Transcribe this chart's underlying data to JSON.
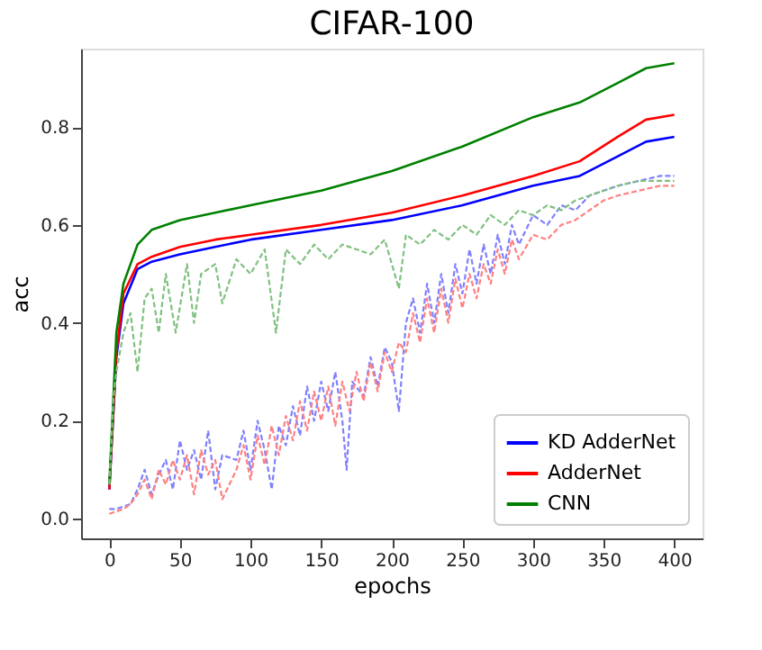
{
  "chart_data": {
    "type": "line",
    "title": "CIFAR-100",
    "xlabel": "epochs",
    "ylabel": "acc",
    "xlim": [
      -20,
      420
    ],
    "xticks": [
      0,
      50,
      100,
      150,
      200,
      250,
      300,
      350,
      400
    ],
    "ylim": [
      -0.04,
      0.96
    ],
    "yticks": [
      {
        "value": 0,
        "label": "0.0"
      },
      0.2,
      0.4,
      0.6,
      0.8
    ],
    "grid": false,
    "legend": "bottom right",
    "series": [
      {
        "name": "KD AdderNet",
        "color": "#0000ff",
        "line_style": "solid",
        "x": [
          0,
          5,
          10,
          20,
          30,
          50,
          75,
          100,
          150,
          200,
          250,
          300,
          333,
          360,
          380,
          400
        ],
        "values": [
          0.06,
          0.33,
          0.44,
          0.51,
          0.525,
          0.54,
          0.555,
          0.57,
          0.59,
          0.61,
          0.64,
          0.68,
          0.7,
          0.74,
          0.77,
          0.78
        ]
      },
      {
        "name": "AdderNet",
        "color": "#ff0000",
        "line_style": "solid",
        "x": [
          0,
          5,
          10,
          20,
          30,
          50,
          75,
          100,
          150,
          200,
          250,
          300,
          333,
          360,
          380,
          400
        ],
        "values": [
          0.06,
          0.34,
          0.46,
          0.52,
          0.535,
          0.555,
          0.57,
          0.58,
          0.6,
          0.625,
          0.66,
          0.7,
          0.73,
          0.78,
          0.815,
          0.825
        ]
      },
      {
        "name": "CNN",
        "color": "#008000",
        "line_style": "solid",
        "x": [
          0,
          5,
          10,
          20,
          30,
          50,
          75,
          100,
          150,
          200,
          250,
          300,
          333,
          360,
          380,
          400
        ],
        "values": [
          0.07,
          0.38,
          0.48,
          0.56,
          0.59,
          0.61,
          0.625,
          0.64,
          0.67,
          0.71,
          0.76,
          0.82,
          0.85,
          0.89,
          0.92,
          0.93
        ]
      },
      {
        "color": "#8080ff",
        "line_style": "dashed",
        "x": [
          0,
          5,
          10,
          15,
          20,
          25,
          30,
          35,
          40,
          45,
          50,
          55,
          60,
          65,
          70,
          75,
          80,
          90,
          95,
          100,
          105,
          110,
          115,
          120,
          125,
          130,
          135,
          140,
          145,
          150,
          155,
          160,
          165,
          168,
          172,
          180,
          185,
          190,
          195,
          200,
          205,
          210,
          215,
          220,
          225,
          230,
          235,
          240,
          245,
          250,
          255,
          260,
          265,
          270,
          275,
          280,
          285,
          290,
          300,
          310,
          320,
          330,
          340,
          350,
          360,
          375,
          390,
          400
        ],
        "values": [
          0.02,
          0.02,
          0.025,
          0.03,
          0.06,
          0.1,
          0.05,
          0.09,
          0.12,
          0.06,
          0.16,
          0.1,
          0.14,
          0.08,
          0.18,
          0.06,
          0.13,
          0.12,
          0.18,
          0.1,
          0.2,
          0.14,
          0.06,
          0.19,
          0.15,
          0.23,
          0.17,
          0.27,
          0.2,
          0.28,
          0.22,
          0.3,
          0.2,
          0.1,
          0.28,
          0.25,
          0.33,
          0.27,
          0.35,
          0.32,
          0.22,
          0.4,
          0.45,
          0.38,
          0.48,
          0.4,
          0.5,
          0.42,
          0.52,
          0.46,
          0.55,
          0.48,
          0.56,
          0.5,
          0.58,
          0.52,
          0.6,
          0.56,
          0.62,
          0.6,
          0.64,
          0.63,
          0.66,
          0.67,
          0.68,
          0.69,
          0.7,
          0.7
        ]
      },
      {
        "color": "#ff8080",
        "line_style": "dashed",
        "x": [
          0,
          5,
          10,
          15,
          20,
          25,
          30,
          35,
          40,
          45,
          50,
          55,
          60,
          65,
          70,
          75,
          80,
          90,
          95,
          100,
          105,
          110,
          115,
          120,
          125,
          130,
          135,
          140,
          145,
          150,
          155,
          160,
          165,
          170,
          175,
          180,
          185,
          190,
          195,
          200,
          205,
          210,
          215,
          220,
          225,
          230,
          235,
          240,
          245,
          250,
          255,
          260,
          265,
          270,
          275,
          280,
          285,
          290,
          300,
          310,
          320,
          330,
          340,
          350,
          360,
          375,
          390,
          400
        ],
        "values": [
          0.01,
          0.015,
          0.02,
          0.03,
          0.05,
          0.08,
          0.04,
          0.1,
          0.07,
          0.12,
          0.08,
          0.13,
          0.05,
          0.14,
          0.09,
          0.12,
          0.04,
          0.1,
          0.15,
          0.08,
          0.17,
          0.11,
          0.19,
          0.13,
          0.21,
          0.16,
          0.24,
          0.18,
          0.26,
          0.2,
          0.27,
          0.19,
          0.28,
          0.22,
          0.3,
          0.24,
          0.32,
          0.26,
          0.34,
          0.3,
          0.36,
          0.34,
          0.42,
          0.36,
          0.45,
          0.38,
          0.47,
          0.4,
          0.49,
          0.43,
          0.5,
          0.45,
          0.52,
          0.48,
          0.55,
          0.5,
          0.57,
          0.53,
          0.58,
          0.57,
          0.6,
          0.61,
          0.63,
          0.65,
          0.66,
          0.67,
          0.68,
          0.68
        ]
      },
      {
        "color": "#80c080",
        "line_style": "dashed",
        "x": [
          0,
          3,
          5,
          10,
          15,
          20,
          25,
          30,
          35,
          40,
          47,
          55,
          60,
          65,
          75,
          80,
          90,
          100,
          110,
          118,
          125,
          135,
          145,
          155,
          165,
          175,
          185,
          195,
          205,
          210,
          220,
          230,
          240,
          250,
          260,
          270,
          280,
          290,
          300,
          310,
          320,
          330,
          340,
          350,
          360,
          375,
          390,
          400
        ],
        "values": [
          0.07,
          0.25,
          0.3,
          0.38,
          0.42,
          0.3,
          0.45,
          0.47,
          0.38,
          0.5,
          0.38,
          0.52,
          0.4,
          0.5,
          0.52,
          0.44,
          0.53,
          0.5,
          0.55,
          0.38,
          0.55,
          0.52,
          0.56,
          0.53,
          0.56,
          0.55,
          0.54,
          0.57,
          0.47,
          0.58,
          0.56,
          0.59,
          0.57,
          0.6,
          0.58,
          0.62,
          0.6,
          0.63,
          0.62,
          0.64,
          0.63,
          0.65,
          0.66,
          0.67,
          0.68,
          0.69,
          0.69,
          0.69
        ]
      }
    ]
  }
}
